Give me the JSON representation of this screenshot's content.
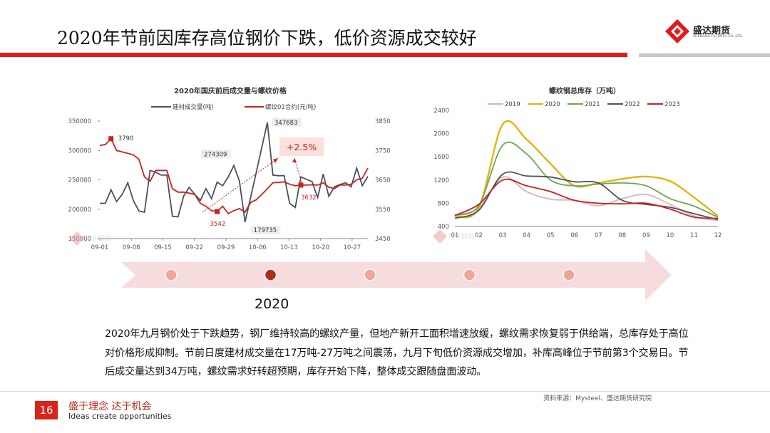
{
  "header": {
    "title": "2020年节前因库存高位钢价下跌，低价资源成交较好",
    "logo_text": "盛达期货",
    "logo_sub": "SHENGDA FUTURES CO.,LTD."
  },
  "colors": {
    "accent_red": "#e11b1b",
    "rebar_red": "#c8211c",
    "volume_gray": "#4b5060",
    "timeline_pink": "#f5dada"
  },
  "chart_data": [
    {
      "type": "line",
      "title": "2020年国庆前后成交量与螺纹价格",
      "x_tick_labels": [
        "09-01",
        "09-08",
        "09-15",
        "09-22",
        "09-29",
        "10-06",
        "10-13",
        "10-20",
        "10-27"
      ],
      "y_left_ticks": [
        "150000",
        "200000",
        "250000",
        "300000",
        "350000"
      ],
      "y_right_ticks": [
        "3450",
        "3550",
        "3650",
        "3750",
        "3850"
      ],
      "ylim_left": [
        150000,
        350000
      ],
      "ylim_right": [
        3450,
        3850
      ],
      "series": [
        {
          "name": "建材成交量(吨)",
          "axis": "left",
          "color": "#4b5060",
          "values": [
            210000,
            210000,
            233000,
            213000,
            225000,
            245000,
            215000,
            197000,
            195000,
            266000,
            263000,
            258000,
            258000,
            188000,
            187000,
            222000,
            237000,
            225000,
            215000,
            235000,
            218000,
            246000,
            240000,
            255000,
            274309,
            248000,
            178000,
            220000,
            262000,
            305000,
            347683,
            258000,
            257000,
            257000,
            210000,
            203000,
            255000,
            251000,
            247000,
            220000,
            260000,
            222000,
            238000,
            242000,
            245000,
            238000,
            270000,
            240000,
            256000
          ]
        },
        {
          "name": "螺纹01合约(元/吨)",
          "axis": "right",
          "color": "#c8211c",
          "values": [
            3767,
            3770,
            3790,
            3750,
            3745,
            3740,
            3735,
            3720,
            3660,
            3645,
            3682,
            3682,
            3682,
            3620,
            3608,
            3608,
            3605,
            3600,
            3570,
            3560,
            3545,
            3542,
            3560,
            3535,
            3545,
            3552,
            3540,
            3573,
            3582,
            3600,
            3620,
            3640,
            3641,
            3643,
            3635,
            3630,
            3632,
            3632,
            3633,
            3632,
            3640,
            3625,
            3620,
            3632,
            3632,
            3635,
            3650,
            3655,
            3690
          ]
        }
      ],
      "data_labels": [
        "3790",
        "274309",
        "347683",
        "179735",
        "3542",
        "3632"
      ],
      "annotation": "+2.5%"
    },
    {
      "type": "line",
      "title": "螺纹钢总库存（万吨）",
      "x_tick_labels": [
        "01",
        "02",
        "03",
        "04",
        "05",
        "06",
        "07",
        "08",
        "09",
        "10",
        "11",
        "12"
      ],
      "y_ticks": [
        "400",
        "800",
        "1200",
        "1600",
        "2000",
        "2400"
      ],
      "ylim": [
        400,
        2400
      ],
      "series": [
        {
          "name": "2019",
          "color": "#d9b3b8",
          "values": [
            600,
            720,
            1250,
            1000,
            870,
            850,
            760,
            880,
            950,
            780,
            580,
            500
          ]
        },
        {
          "name": "2020",
          "color": "#e3b30f",
          "values": [
            570,
            720,
            2160,
            1900,
            1480,
            1100,
            1150,
            1220,
            1260,
            1180,
            900,
            580
          ]
        },
        {
          "name": "2021",
          "color": "#6aa84f",
          "values": [
            590,
            760,
            1800,
            1650,
            1200,
            1100,
            1130,
            1150,
            1100,
            880,
            750,
            560
          ]
        },
        {
          "name": "2022",
          "color": "#4b5060",
          "values": [
            540,
            680,
            1300,
            1270,
            1250,
            1170,
            1150,
            850,
            780,
            730,
            620,
            520
          ]
        },
        {
          "name": "2023",
          "color": "#c8211c",
          "values": [
            590,
            780,
            1200,
            1100,
            1000,
            850,
            800,
            790,
            800,
            700,
            560,
            540
          ]
        }
      ]
    }
  ],
  "timeline": {
    "year_label": "2020",
    "dot_count": 5,
    "active_index": 1
  },
  "paragraph": "2020年九月钢价处于下跌趋势，钢厂维持较高的螺纹产量，但地产新开工面积增速放缓，螺纹需求恢复弱于供给端，总库存处于高位对价格形成抑制。节前日度建材成交量在17万吨-27万吨之间震荡，九月下旬低价资源成交增加，补库高峰位于节前第3个交易日。节后成交量达到34万吨，螺纹需求好转超预期，库存开始下降，整体成交跟随盘面波动。",
  "source": "资料来源：Mysteel、盛达期货研究院",
  "footer": {
    "page_number": "16",
    "slogan_cn": "盛于理念 达于机会",
    "slogan_en": "Ideas create opportunities"
  },
  "watermark": "盛达期货"
}
